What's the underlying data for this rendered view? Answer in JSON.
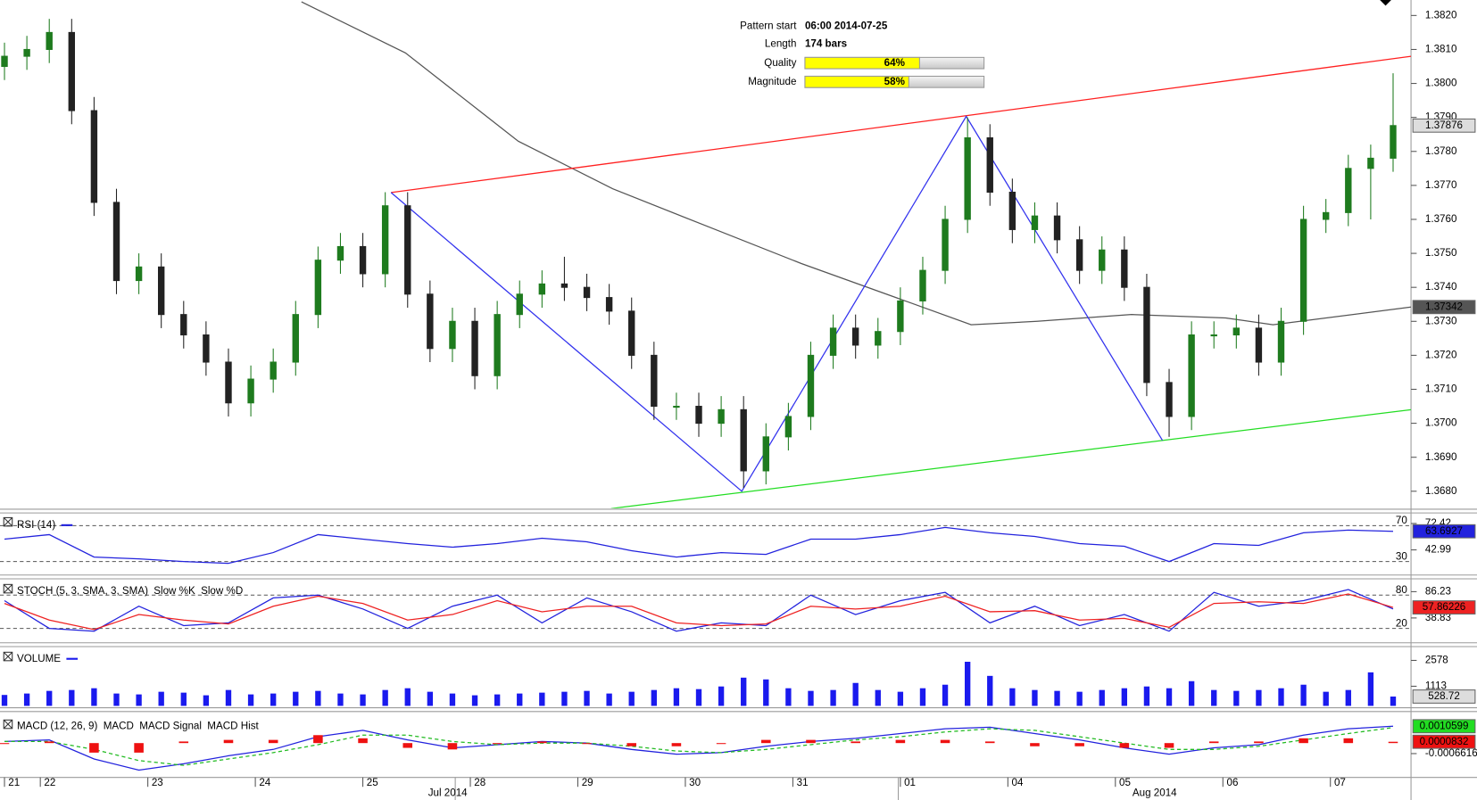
{
  "chart_data": [
    {
      "type": "candlestick",
      "x": [
        16,
        21,
        26,
        31,
        36,
        41,
        46,
        51,
        56,
        61,
        66,
        71,
        76,
        81,
        86,
        91,
        96,
        101,
        106,
        111,
        116,
        121,
        126,
        131,
        136,
        141,
        146,
        151,
        156,
        161,
        166,
        171,
        176,
        181,
        186,
        191,
        196,
        201,
        206,
        211,
        216,
        221,
        226,
        231,
        236,
        241,
        246,
        251,
        256,
        261,
        266,
        271,
        276,
        281,
        286,
        291,
        296,
        301,
        306,
        311,
        316,
        321,
        326
      ],
      "open": [
        1.3805,
        1.3808,
        1.381,
        1.3815,
        1.3792,
        1.3765,
        1.3742,
        1.3746,
        1.3732,
        1.3726,
        1.3718,
        1.3706,
        1.3713,
        1.3718,
        1.3732,
        1.3748,
        1.3752,
        1.3744,
        1.3764,
        1.3738,
        1.3722,
        1.373,
        1.3714,
        1.3732,
        1.3738,
        1.3741,
        1.374,
        1.3737,
        1.3733,
        1.372,
        1.3705,
        1.3705,
        1.37,
        1.3704,
        1.3686,
        1.3696,
        1.3702,
        1.372,
        1.3728,
        1.3723,
        1.3727,
        1.3736,
        1.3745,
        1.376,
        1.3784,
        1.3768,
        1.3757,
        1.3761,
        1.3754,
        1.3745,
        1.3751,
        1.374,
        1.3712,
        1.3702,
        1.3726,
        1.3726,
        1.3728,
        1.3718,
        1.373,
        1.376,
        1.3762,
        1.3775,
        1.3778
      ],
      "high": [
        1.3812,
        1.3814,
        1.3819,
        1.3819,
        1.3796,
        1.3769,
        1.375,
        1.375,
        1.3736,
        1.373,
        1.3722,
        1.3717,
        1.3722,
        1.3736,
        1.3752,
        1.3756,
        1.3756,
        1.3768,
        1.3768,
        1.3742,
        1.3734,
        1.3734,
        1.3736,
        1.3742,
        1.3745,
        1.3749,
        1.3744,
        1.3741,
        1.3737,
        1.3724,
        1.3709,
        1.3709,
        1.3708,
        1.3708,
        1.37,
        1.3706,
        1.3724,
        1.3732,
        1.3732,
        1.3731,
        1.374,
        1.3749,
        1.3764,
        1.379,
        1.3788,
        1.3772,
        1.3765,
        1.3765,
        1.3758,
        1.3755,
        1.3755,
        1.3744,
        1.3716,
        1.373,
        1.373,
        1.3732,
        1.3732,
        1.3734,
        1.3764,
        1.3766,
        1.3779,
        1.3782,
        1.3803
      ],
      "low": [
        1.3801,
        1.3804,
        1.3806,
        1.3788,
        1.3761,
        1.3738,
        1.3738,
        1.3728,
        1.3722,
        1.3714,
        1.3702,
        1.3702,
        1.3709,
        1.3714,
        1.3728,
        1.3744,
        1.374,
        1.374,
        1.3734,
        1.3718,
        1.3718,
        1.371,
        1.371,
        1.3728,
        1.3734,
        1.3736,
        1.3733,
        1.3729,
        1.3716,
        1.3701,
        1.3701,
        1.3696,
        1.3696,
        1.3681,
        1.3682,
        1.3692,
        1.3698,
        1.3716,
        1.3719,
        1.3719,
        1.3723,
        1.3732,
        1.3741,
        1.3756,
        1.3764,
        1.3753,
        1.3753,
        1.375,
        1.3741,
        1.3741,
        1.3736,
        1.3708,
        1.3696,
        1.3698,
        1.3722,
        1.3722,
        1.3714,
        1.3714,
        1.3726,
        1.3756,
        1.3758,
        1.376,
        1.3774
      ],
      "close": [
        1.3808,
        1.381,
        1.3815,
        1.3792,
        1.3765,
        1.3742,
        1.3746,
        1.3732,
        1.3726,
        1.3718,
        1.3706,
        1.3713,
        1.3718,
        1.3732,
        1.3748,
        1.3752,
        1.3744,
        1.3764,
        1.3738,
        1.3722,
        1.373,
        1.3714,
        1.3732,
        1.3738,
        1.3741,
        1.374,
        1.3737,
        1.3733,
        1.372,
        1.3705,
        1.3705,
        1.37,
        1.3704,
        1.3686,
        1.3696,
        1.3702,
        1.372,
        1.3728,
        1.3723,
        1.3727,
        1.3736,
        1.3745,
        1.376,
        1.3784,
        1.3768,
        1.3757,
        1.3761,
        1.3754,
        1.3745,
        1.3751,
        1.374,
        1.3712,
        1.3702,
        1.3726,
        1.3726,
        1.3728,
        1.3718,
        1.373,
        1.376,
        1.3762,
        1.3775,
        1.3778,
        1.37876
      ],
      "up_color": "#1e7b1e",
      "down_color": "#222222",
      "overlays": [
        {
          "color": "#555555",
          "x": [
            82.3,
            105.5,
            130.7,
            151.8,
            172.8,
            193.9,
            215,
            231.8,
            246.5,
            267.6,
            288.6,
            299.2,
            330
          ],
          "values": [
            1.3824,
            1.3809,
            1.3783,
            1.3769,
            1.3758,
            1.3747,
            1.3737,
            1.3729,
            1.373,
            1.3732,
            1.3731,
            1.3729,
            1.37342
          ]
        },
        {
          "color": "#ff2020",
          "x": [
            102.3,
            330
          ],
          "values": [
            1.37679,
            1.3808
          ]
        },
        {
          "color": "#22dd22",
          "x": [
            151.4,
            330
          ],
          "values": [
            1.36749,
            1.3704
          ]
        },
        {
          "color": "#3333ee",
          "x": [
            102.3,
            180.6,
            230.7,
            274.5
          ],
          "values": [
            1.37679,
            1.368,
            1.37903,
            1.3695
          ]
        }
      ],
      "xlim": [
        15,
        330
      ],
      "ylim": [
        1.3675,
        1.3824
      ],
      "yticks": [
        {
          "value": 1.368,
          "label": "1.3680"
        },
        {
          "value": 1.369,
          "label": "1.3690"
        },
        {
          "value": 1.37,
          "label": "1.3700"
        },
        {
          "value": 1.371,
          "label": "1.3710"
        },
        {
          "value": 1.372,
          "label": "1.3720"
        },
        {
          "value": 1.373,
          "label": "1.3730"
        },
        {
          "value": 1.374,
          "label": "1.3740"
        },
        {
          "value": 1.375,
          "label": "1.3750"
        },
        {
          "value": 1.376,
          "label": "1.3760"
        },
        {
          "value": 1.377,
          "label": "1.3770"
        },
        {
          "value": 1.378,
          "label": "1.3780"
        },
        {
          "value": 1.379,
          "label": "1.3790"
        },
        {
          "value": 1.38,
          "label": "1.3800"
        },
        {
          "value": 1.381,
          "label": "1.3810"
        },
        {
          "value": 1.382,
          "label": "1.3820"
        }
      ],
      "xticks": [
        {
          "value": 16,
          "label": "21"
        },
        {
          "value": 24,
          "label": "22"
        },
        {
          "value": 48,
          "label": "23"
        },
        {
          "value": 72,
          "label": "24"
        },
        {
          "value": 96,
          "label": "25"
        },
        {
          "value": 120,
          "label": "28"
        },
        {
          "value": 144,
          "label": "29"
        },
        {
          "value": 168,
          "label": "30"
        },
        {
          "value": 192,
          "label": "31"
        },
        {
          "value": 216,
          "label": "01"
        },
        {
          "value": 240,
          "label": "04"
        },
        {
          "value": 264,
          "label": "05"
        },
        {
          "value": 288,
          "label": "06"
        },
        {
          "value": 312,
          "label": "07"
        }
      ],
      "month_labels": [
        "Jul 2014",
        "Aug 2014"
      ]
    },
    {
      "type": "line",
      "title": "RSI (14)",
      "x": [
        16,
        26,
        36,
        46,
        56,
        66,
        76,
        86,
        96,
        106,
        116,
        126,
        136,
        146,
        156,
        166,
        176,
        186,
        196,
        206,
        216,
        226,
        236,
        246,
        256,
        266,
        276,
        286,
        296,
        306,
        316,
        326
      ],
      "series": [
        {
          "color": "#2222dd",
          "values": [
            55,
            60,
            35,
            33,
            30,
            28,
            40,
            60,
            55,
            50,
            46,
            50,
            56,
            52,
            42,
            35,
            40,
            38,
            55,
            55,
            60,
            68,
            62,
            58,
            50,
            47,
            30,
            50,
            48,
            62,
            65,
            63.6927
          ]
        }
      ],
      "levels": [
        70,
        30
      ],
      "ylim": [
        16,
        81
      ],
      "yticks": [
        72.42,
        42.99
      ]
    },
    {
      "type": "line",
      "title": "STOCH (5, 3, SMA, 3, SMA)",
      "x": [
        16,
        26,
        36,
        46,
        56,
        66,
        76,
        86,
        96,
        106,
        116,
        126,
        136,
        146,
        156,
        166,
        176,
        186,
        196,
        206,
        216,
        226,
        236,
        246,
        256,
        266,
        276,
        286,
        296,
        306,
        316,
        326
      ],
      "series": [
        {
          "name": "Slow %K",
          "color": "#2222dd",
          "values": [
            70,
            20,
            15,
            60,
            25,
            30,
            75,
            80,
            55,
            20,
            60,
            80,
            30,
            75,
            50,
            15,
            30,
            25,
            80,
            45,
            70,
            85,
            30,
            60,
            25,
            45,
            15,
            85,
            60,
            70,
            90,
            55
          ]
        },
        {
          "name": "Slow %D",
          "color": "#ee2222",
          "values": [
            65,
            35,
            18,
            45,
            35,
            28,
            60,
            78,
            65,
            35,
            45,
            70,
            50,
            60,
            60,
            30,
            25,
            28,
            60,
            55,
            60,
            78,
            50,
            52,
            35,
            38,
            22,
            65,
            68,
            65,
            82,
            57.86226
          ]
        }
      ],
      "levels": [
        80,
        20
      ],
      "ylim": [
        -4.3,
        104.3
      ],
      "yticks": [
        86.23,
        38.83
      ]
    },
    {
      "type": "bar",
      "title": "VOLUME",
      "color": "#1a1aee",
      "x": [
        16,
        21,
        26,
        31,
        36,
        41,
        46,
        51,
        56,
        61,
        66,
        71,
        76,
        81,
        86,
        91,
        96,
        101,
        106,
        111,
        116,
        121,
        126,
        131,
        136,
        141,
        146,
        151,
        156,
        161,
        166,
        171,
        176,
        181,
        186,
        191,
        196,
        201,
        206,
        211,
        216,
        221,
        226,
        231,
        236,
        241,
        246,
        251,
        256,
        261,
        266,
        271,
        276,
        281,
        286,
        291,
        296,
        301,
        306,
        311,
        316,
        321,
        326
      ],
      "values": [
        620,
        700,
        850,
        900,
        1000,
        700,
        650,
        800,
        750,
        600,
        900,
        650,
        700,
        800,
        850,
        700,
        650,
        900,
        1000,
        800,
        700,
        600,
        650,
        700,
        750,
        800,
        850,
        700,
        800,
        900,
        1000,
        950,
        1100,
        1600,
        1500,
        1000,
        850,
        900,
        1300,
        900,
        800,
        1000,
        1200,
        2500,
        1700,
        1000,
        900,
        850,
        800,
        900,
        1000,
        1100,
        1000,
        1400,
        900,
        850,
        900,
        1000,
        1200,
        800,
        900,
        1900,
        528.72
      ],
      "ylim": [
        0,
        3200
      ],
      "yticks": [
        2578,
        1113
      ]
    },
    {
      "type": "line",
      "title": "MACD (12, 26, 9)",
      "x": [
        16,
        26,
        36,
        46,
        56,
        66,
        76,
        86,
        96,
        106,
        116,
        126,
        136,
        146,
        156,
        166,
        176,
        186,
        196,
        206,
        216,
        226,
        236,
        246,
        256,
        266,
        276,
        286,
        296,
        306,
        316,
        326
      ],
      "series": [
        {
          "name": "MACD",
          "color": "#2222dd",
          "values": [
            0.0001,
            0.0002,
            -0.001,
            -0.0017,
            -0.0013,
            -0.0008,
            -0.0004,
            0.0004,
            0.0008,
            0.0002,
            -0.0003,
            -0.0001,
            0.0001,
            0,
            -0.0004,
            -0.0007,
            -0.0006,
            -0.0002,
            0.0001,
            0.0003,
            0.0006,
            0.0009,
            0.001,
            0.0006,
            0.0002,
            -0.0003,
            -0.0007,
            -0.0003,
            -0.0001,
            0.0005,
            0.0009,
            0.0010599
          ]
        },
        {
          "name": "MACD Signal",
          "color": "#22bb22",
          "dashed": true,
          "values": [
            0.0001,
            0.0001,
            -0.0004,
            -0.0011,
            -0.0014,
            -0.001,
            -0.0006,
            -0.0001,
            0.0005,
            0.0005,
            0.0001,
            -0.0001,
            0,
            0,
            -0.0002,
            -0.0005,
            -0.0006,
            -0.0004,
            -0.0001,
            0.0002,
            0.0004,
            0.0007,
            0.0009,
            0.0008,
            0.0004,
            0,
            -0.0004,
            -0.0004,
            -0.0002,
            0.0002,
            0.0006,
            0.0009767
          ]
        },
        {
          "name": "MACD Hist",
          "color": "#ee1111",
          "style": "bar",
          "values": [
            0,
            0.0001,
            -0.0006,
            -0.0006,
            0.0001,
            0.0002,
            0.0002,
            0.0005,
            0.0003,
            -0.0003,
            -0.0004,
            0,
            0.0001,
            0,
            -0.0002,
            -0.0002,
            0,
            0.0002,
            0.0002,
            0.0001,
            0.0002,
            0.0002,
            0.0001,
            -0.0002,
            -0.0002,
            -0.0003,
            -0.0003,
            0.0001,
            0.0001,
            0.0003,
            0.0003,
            8.32e-05
          ]
        }
      ],
      "ylim": [
        -0.00216,
        0.00163
      ],
      "yticks": [
        -0.0006616
      ]
    }
  ],
  "pattern_info": {
    "rows": [
      {
        "label": "Pattern start",
        "value": "06:00 2014-07-25"
      },
      {
        "label": "Length",
        "value": "174 bars"
      }
    ],
    "meters": [
      {
        "label": "Quality",
        "value": 64,
        "value_label": "64%"
      },
      {
        "label": "Magnitude",
        "value": 58,
        "value_label": "58%"
      }
    ]
  }
}
